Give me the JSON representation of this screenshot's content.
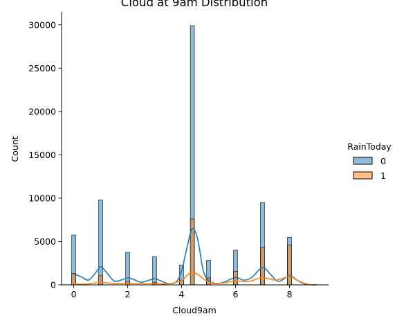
{
  "chart_data": {
    "type": "histogram",
    "title": "Cloud at 9am Distribution",
    "xlabel": "Cloud9am",
    "ylabel": "Count",
    "xlim": [
      -0.45,
      9.45
    ],
    "ylim": [
      0,
      31500
    ],
    "x_ticks": [
      0,
      2,
      4,
      6,
      8
    ],
    "y_ticks": [
      0,
      5000,
      10000,
      15000,
      20000,
      25000,
      30000
    ],
    "legend": {
      "title": "RainToday",
      "placement": "right",
      "entries": [
        "0",
        "1"
      ]
    },
    "colors": {
      "series0": "#1f77b4",
      "series1": "#ff7f0e"
    },
    "bin_width": 0.15,
    "categories": [
      0,
      1,
      2,
      3,
      4,
      4.4,
      5,
      6,
      7,
      8
    ],
    "series": [
      {
        "name": "0",
        "values": [
          5750,
          9800,
          3750,
          3250,
          2300,
          29900,
          2850,
          4000,
          9500,
          5500
        ]
      },
      {
        "name": "1",
        "values": [
          1300,
          1050,
          400,
          300,
          550,
          7600,
          800,
          1550,
          4300,
          4600
        ]
      }
    ],
    "kde": [
      {
        "name": "0",
        "points": [
          [
            0,
            1250
          ],
          [
            0.3,
            900
          ],
          [
            0.55,
            550
          ],
          [
            0.8,
            1350
          ],
          [
            1,
            2100
          ],
          [
            1.2,
            1500
          ],
          [
            1.5,
            450
          ],
          [
            1.8,
            600
          ],
          [
            2,
            800
          ],
          [
            2.2,
            650
          ],
          [
            2.5,
            300
          ],
          [
            2.8,
            550
          ],
          [
            3,
            700
          ],
          [
            3.2,
            500
          ],
          [
            3.5,
            150
          ],
          [
            3.8,
            350
          ],
          [
            4,
            1600
          ],
          [
            4.2,
            4300
          ],
          [
            4.4,
            6500
          ],
          [
            4.6,
            5200
          ],
          [
            4.8,
            1700
          ],
          [
            5,
            500
          ],
          [
            5.3,
            150
          ],
          [
            5.6,
            350
          ],
          [
            6,
            850
          ],
          [
            6.3,
            550
          ],
          [
            6.6,
            850
          ],
          [
            7,
            2000
          ],
          [
            7.3,
            1200
          ],
          [
            7.6,
            400
          ],
          [
            8,
            1050
          ],
          [
            8.3,
            500
          ],
          [
            8.6,
            80
          ],
          [
            9,
            0
          ]
        ]
      },
      {
        "name": "1",
        "points": [
          [
            0,
            80
          ],
          [
            0.5,
            100
          ],
          [
            1,
            280
          ],
          [
            1.5,
            150
          ],
          [
            2,
            150
          ],
          [
            2.5,
            130
          ],
          [
            3,
            150
          ],
          [
            3.5,
            120
          ],
          [
            4,
            500
          ],
          [
            4.2,
            1100
          ],
          [
            4.4,
            1500
          ],
          [
            4.6,
            1200
          ],
          [
            4.9,
            500
          ],
          [
            5.2,
            150
          ],
          [
            5.6,
            250
          ],
          [
            6,
            450
          ],
          [
            6.5,
            400
          ],
          [
            7,
            850
          ],
          [
            7.5,
            550
          ],
          [
            8,
            950
          ],
          [
            8.3,
            500
          ],
          [
            8.7,
            50
          ],
          [
            9,
            0
          ]
        ]
      }
    ]
  }
}
